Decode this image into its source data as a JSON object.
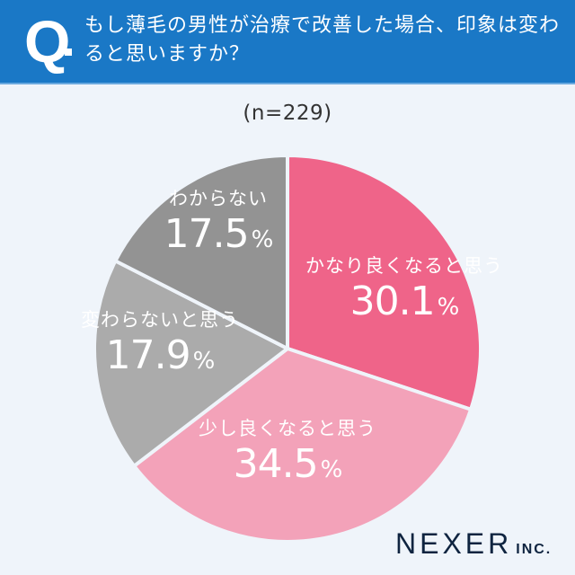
{
  "header": {
    "q_label": "Q",
    "question": "もし薄毛の男性が治療で改善した場合、印象は変わると思いますか？",
    "background_color": "#1a78c6"
  },
  "sample_size_label": "(n=229)",
  "logo": {
    "name": "NEXER",
    "suffix": "INC."
  },
  "chart_data": {
    "type": "pie",
    "title": "もし薄毛の男性が治療で改善した場合、印象は変わると思いますか？",
    "n": 229,
    "start_angle_deg": 0,
    "direction": "clockwise",
    "categories": [
      "かなり良くなると思う",
      "少し良くなると思う",
      "変わらないと思う",
      "わからない"
    ],
    "values": [
      30.1,
      34.5,
      17.9,
      17.5
    ],
    "unit": "%",
    "colors": [
      "#ef6489",
      "#f3a2b9",
      "#ababab",
      "#939393"
    ],
    "labels": [
      {
        "category": "かなり良くなると思う",
        "value": "30.1",
        "pct": "%"
      },
      {
        "category": "少し良くなると思う",
        "value": "34.5",
        "pct": "%"
      },
      {
        "category": "変わらないと思う",
        "value": "17.9",
        "pct": "%"
      },
      {
        "category": "わからない",
        "value": "17.5",
        "pct": "%"
      }
    ],
    "legend": "none (labels inside slices)"
  }
}
